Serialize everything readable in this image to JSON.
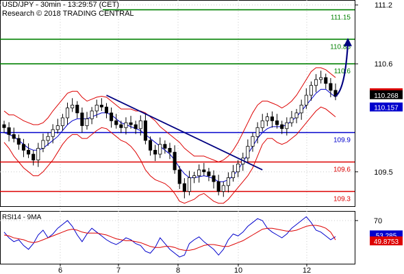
{
  "header": {
    "title": "USD/JPY - 30min - 13:29:57 (CET)",
    "copyright": "Research © 2018 TRADING CENTRAL"
  },
  "colors": {
    "resistance": "#008000",
    "pivot": "#0000cc",
    "support": "#dd0000",
    "bollinger": "#dd0000",
    "ma": "#0000cc",
    "trendline": "#000080",
    "forecast": "#000080",
    "rsi": "#0000cc",
    "rsi_ma": "#dd0000",
    "grid": "#c8c8c8"
  },
  "chart_data": [
    {
      "type": "candlestick",
      "instrument": "USD/JPY",
      "timeframe": "30min",
      "ylim": [
        109.15,
        111.25
      ],
      "y_ticks": [
        "111.2",
        "110.6",
        "109.5"
      ],
      "x_ticks": [
        "6",
        "7",
        "8",
        "10",
        "12"
      ],
      "levels": [
        {
          "label": "111.15",
          "value": 111.15,
          "kind": "resistance"
        },
        {
          "label": "110.85",
          "value": 110.85,
          "kind": "resistance"
        },
        {
          "label": "110.6",
          "value": 110.6,
          "kind": "resistance"
        },
        {
          "label": "109.9",
          "value": 109.9,
          "kind": "pivot"
        },
        {
          "label": "109.6",
          "value": 109.6,
          "kind": "support"
        },
        {
          "label": "109.3",
          "value": 109.3,
          "kind": "support"
        }
      ],
      "price_tags": [
        {
          "label": "110.274",
          "value": 110.274,
          "style": "red"
        },
        {
          "label": "110.268",
          "value": 110.268,
          "style": "black"
        },
        {
          "label": "110.157",
          "value": 110.157,
          "style": "blue"
        }
      ],
      "price_close": [
        109.95,
        109.88,
        109.84,
        109.78,
        109.72,
        109.68,
        109.62,
        109.74,
        109.82,
        109.86,
        109.93,
        109.97,
        110.05,
        110.15,
        110.18,
        110.1,
        109.97,
        110.04,
        110.12,
        110.18,
        110.16,
        110.1,
        110.02,
        109.98,
        109.95,
        110.0,
        109.98,
        109.94,
        110.02,
        109.82,
        109.72,
        109.68,
        109.78,
        109.74,
        109.7,
        109.52,
        109.38,
        109.3,
        109.44,
        109.46,
        109.52,
        109.5,
        109.46,
        109.4,
        109.3,
        109.36,
        109.44,
        109.5,
        109.58,
        109.64,
        109.76,
        109.86,
        109.95,
        110.02,
        110.06,
        110.02,
        109.98,
        109.94,
        110.0,
        110.05,
        110.1,
        110.18,
        110.28,
        110.38,
        110.44,
        110.46,
        110.4,
        110.33,
        110.27
      ],
      "forecast_to": 110.85,
      "trendline": {
        "from": 110.28,
        "to": 109.52
      },
      "bollinger_upper": [
        110.12,
        110.08,
        110.08,
        110.05,
        110.02,
        110.0,
        109.98,
        109.98,
        110.0,
        110.05,
        110.12,
        110.18,
        110.24,
        110.3,
        110.32,
        110.32,
        110.26,
        110.22,
        110.24,
        110.26,
        110.27,
        110.26,
        110.22,
        110.18,
        110.14,
        110.14,
        110.14,
        110.12,
        110.12,
        110.1,
        110.06,
        110.02,
        109.96,
        109.92,
        109.88,
        109.84,
        109.8,
        109.74,
        109.7,
        109.66,
        109.66,
        109.66,
        109.64,
        109.62,
        109.6,
        109.62,
        109.66,
        109.72,
        109.8,
        109.9,
        110.0,
        110.1,
        110.18,
        110.22,
        110.22,
        110.2,
        110.18,
        110.15,
        110.18,
        110.22,
        110.28,
        110.36,
        110.44,
        110.52,
        110.56,
        110.56,
        110.54,
        110.5,
        110.46
      ],
      "bollinger_lower": [
        109.8,
        109.74,
        109.66,
        109.6,
        109.54,
        109.5,
        109.46,
        109.46,
        109.5,
        109.56,
        109.62,
        109.7,
        109.78,
        109.84,
        109.88,
        109.88,
        109.84,
        109.84,
        109.88,
        109.92,
        109.95,
        109.94,
        109.9,
        109.86,
        109.82,
        109.8,
        109.76,
        109.7,
        109.62,
        109.52,
        109.46,
        109.42,
        109.4,
        109.38,
        109.34,
        109.28,
        109.2,
        109.18,
        109.2,
        109.22,
        109.26,
        109.28,
        109.24,
        109.2,
        109.18,
        109.18,
        109.22,
        109.28,
        109.34,
        109.4,
        109.46,
        109.54,
        109.66,
        109.78,
        109.84,
        109.84,
        109.8,
        109.78,
        109.8,
        109.84,
        109.88,
        109.94,
        110.0,
        110.06,
        110.12,
        110.16,
        110.14,
        110.1,
        110.06
      ],
      "ma": [
        109.9,
        109.88,
        109.86,
        109.82,
        109.78,
        109.74,
        109.72,
        109.72,
        109.74,
        109.78,
        109.82,
        109.86,
        109.92,
        109.98,
        110.02,
        110.04,
        110.04,
        110.04,
        110.06,
        110.08,
        110.1,
        110.1,
        110.08,
        110.04,
        110.0,
        109.98,
        109.96,
        109.94,
        109.92,
        109.88,
        109.84,
        109.8,
        109.76,
        109.72,
        109.68,
        109.62,
        109.54,
        109.48,
        109.44,
        109.44,
        109.45,
        109.46,
        109.45,
        109.43,
        109.4,
        109.4,
        109.42,
        109.46,
        109.52,
        109.6,
        109.68,
        109.76,
        109.84,
        109.9,
        109.94,
        109.96,
        109.96,
        109.96,
        109.98,
        110.02,
        110.06,
        110.12,
        110.18,
        110.24,
        110.3,
        110.34,
        110.34,
        110.3,
        110.26
      ]
    },
    {
      "type": "line",
      "title": "RSI14 - 9MA",
      "ylim": [
        25,
        80
      ],
      "y_ticks": [
        "70"
      ],
      "value_tags": [
        {
          "label": "53.285",
          "value": 53.285,
          "style": "blue"
        },
        {
          "label": "49.8753",
          "value": 49.8753,
          "style": "red"
        }
      ],
      "series": [
        {
          "name": "RSI14",
          "values": [
            58,
            52,
            48,
            50,
            44,
            40,
            46,
            55,
            60,
            52,
            56,
            62,
            66,
            70,
            64,
            55,
            48,
            56,
            62,
            58,
            54,
            50,
            47,
            45,
            48,
            52,
            50,
            46,
            44,
            38,
            36,
            42,
            52,
            46,
            40,
            36,
            32,
            34,
            46,
            50,
            53,
            48,
            44,
            40,
            34,
            40,
            50,
            56,
            54,
            58,
            64,
            68,
            72,
            70,
            62,
            58,
            55,
            52,
            56,
            62,
            66,
            70,
            74,
            68,
            60,
            58,
            54,
            50,
            53.285
          ]
        },
        {
          "name": "9MA",
          "values": [
            55,
            54,
            52,
            51,
            50,
            48,
            47,
            48,
            50,
            52,
            54,
            56,
            58,
            60,
            61,
            60,
            58,
            57,
            57,
            57,
            56,
            55,
            53,
            51,
            50,
            49,
            49,
            48,
            47,
            45,
            43,
            42,
            42,
            43,
            43,
            42,
            40,
            39,
            39,
            40,
            42,
            44,
            45,
            45,
            44,
            43,
            43,
            45,
            47,
            49,
            52,
            55,
            58,
            61,
            62,
            62,
            61,
            60,
            59,
            59,
            60,
            62,
            64,
            65,
            65,
            64,
            62,
            58,
            49.8753
          ]
        }
      ]
    }
  ]
}
